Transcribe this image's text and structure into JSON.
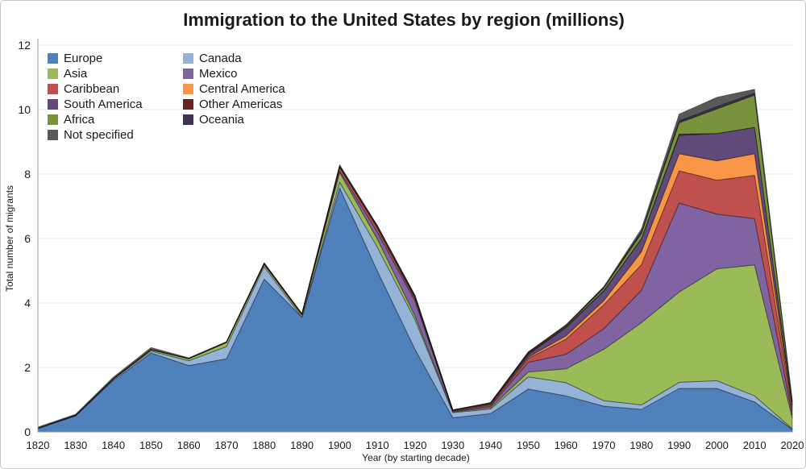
{
  "chart_data": {
    "type": "area",
    "stacked": true,
    "title": "Immigration to the United States by region (millions)",
    "xlabel": "Year (by starting decade)",
    "ylabel": "Total number of migrants",
    "ylim": [
      0,
      12
    ],
    "yticks": [
      0,
      2,
      4,
      6,
      8,
      10,
      12
    ],
    "grid": "horizontal",
    "legend_position": "top-left-inside",
    "categories": [
      1820,
      1830,
      1840,
      1850,
      1860,
      1870,
      1880,
      1890,
      1900,
      1910,
      1920,
      1930,
      1940,
      1950,
      1960,
      1970,
      1980,
      1990,
      2000,
      2010,
      2020
    ],
    "series": [
      {
        "name": "Europe",
        "color": "#4F81BD",
        "values": [
          0.1,
          0.5,
          1.6,
          2.45,
          2.06,
          2.27,
          4.74,
          3.56,
          7.57,
          4.99,
          2.56,
          0.44,
          0.57,
          1.33,
          1.12,
          0.8,
          0.7,
          1.35,
          1.35,
          0.93,
          0.08
        ]
      },
      {
        "name": "Canada",
        "color": "#95B3D7",
        "values": [
          0.02,
          0.01,
          0.04,
          0.06,
          0.15,
          0.38,
          0.39,
          0.0,
          0.18,
          0.74,
          0.92,
          0.16,
          0.14,
          0.38,
          0.41,
          0.17,
          0.14,
          0.19,
          0.24,
          0.19,
          0.02
        ]
      },
      {
        "name": "Asia",
        "color": "#9BBB59",
        "values": [
          0.0,
          0.0,
          0.0,
          0.04,
          0.06,
          0.12,
          0.07,
          0.07,
          0.3,
          0.25,
          0.11,
          0.02,
          0.04,
          0.15,
          0.43,
          1.59,
          2.55,
          2.8,
          3.47,
          4.06,
          0.33
        ]
      },
      {
        "name": "Mexico",
        "color": "#8064A2",
        "values": [
          0.0,
          0.0,
          0.0,
          0.0,
          0.0,
          0.01,
          0.0,
          0.0,
          0.05,
          0.22,
          0.46,
          0.02,
          0.05,
          0.3,
          0.45,
          0.64,
          1.0,
          2.76,
          1.7,
          1.44,
          0.1
        ]
      },
      {
        "name": "Caribbean",
        "color": "#C0504D",
        "values": [
          0.0,
          0.01,
          0.01,
          0.01,
          0.01,
          0.01,
          0.03,
          0.03,
          0.11,
          0.12,
          0.07,
          0.02,
          0.04,
          0.12,
          0.47,
          0.74,
          0.8,
          1.0,
          1.05,
          1.34,
          0.14
        ]
      },
      {
        "name": "Central America",
        "color": "#F79646",
        "values": [
          0.0,
          0.0,
          0.0,
          0.0,
          0.0,
          0.0,
          0.0,
          0.0,
          0.01,
          0.02,
          0.02,
          0.01,
          0.02,
          0.04,
          0.1,
          0.13,
          0.4,
          0.53,
          0.6,
          0.67,
          0.08
        ]
      },
      {
        "name": "South America",
        "color": "#604A7B",
        "values": [
          0.0,
          0.0,
          0.0,
          0.0,
          0.0,
          0.0,
          0.0,
          0.0,
          0.02,
          0.04,
          0.04,
          0.01,
          0.02,
          0.08,
          0.26,
          0.3,
          0.4,
          0.57,
          0.85,
          0.82,
          0.09
        ]
      },
      {
        "name": "Other Americas",
        "color": "#632423",
        "values": [
          0.0,
          0.0,
          0.0,
          0.0,
          0.0,
          0.0,
          0.0,
          0.0,
          0.0,
          0.0,
          0.03,
          0.0,
          0.01,
          0.06,
          0.02,
          0.01,
          0.01,
          0.04,
          0.0,
          0.0,
          0.0
        ]
      },
      {
        "name": "Africa",
        "color": "#77933C",
        "values": [
          0.0,
          0.0,
          0.0,
          0.0,
          0.0,
          0.0,
          0.0,
          0.0,
          0.01,
          0.01,
          0.01,
          0.0,
          0.01,
          0.01,
          0.03,
          0.08,
          0.16,
          0.35,
          0.76,
          1.0,
          0.1
        ]
      },
      {
        "name": "Oceania",
        "color": "#403152",
        "values": [
          0.0,
          0.0,
          0.0,
          0.0,
          0.0,
          0.0,
          0.01,
          0.0,
          0.01,
          0.01,
          0.01,
          0.0,
          0.01,
          0.01,
          0.03,
          0.04,
          0.04,
          0.06,
          0.07,
          0.06,
          0.01
        ]
      },
      {
        "name": "Not specified",
        "color": "#595959",
        "values": [
          0.03,
          0.03,
          0.05,
          0.06,
          0.02,
          0.01,
          0.01,
          0.01,
          0.03,
          0.0,
          0.0,
          0.0,
          0.0,
          0.0,
          0.0,
          0.0,
          0.1,
          0.21,
          0.29,
          0.12,
          0.02
        ]
      }
    ],
    "legend_columns": [
      [
        "Europe",
        "Asia",
        "Caribbean",
        "South America",
        "Africa",
        "Not specified"
      ],
      [
        "Canada",
        "Mexico",
        "Central America",
        "Other Americas",
        "Oceania"
      ]
    ]
  }
}
